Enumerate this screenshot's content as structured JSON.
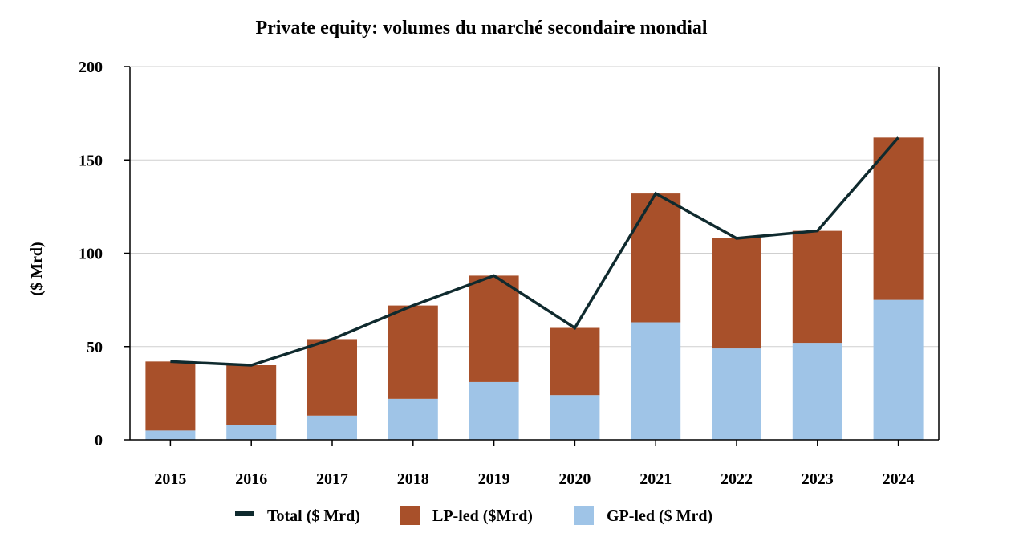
{
  "chart_data": {
    "type": "bar",
    "stacked": true,
    "title": "Private equity: volumes du marché secondaire mondial",
    "xlabel": "",
    "ylabel": "($ Mrd)",
    "ylim": [
      0,
      200
    ],
    "yticks": [
      0,
      50,
      100,
      150,
      200
    ],
    "grid": true,
    "legend_position": "bottom",
    "categories": [
      "2015",
      "2016",
      "2017",
      "2018",
      "2019",
      "2020",
      "2021",
      "2022",
      "2023",
      "2024"
    ],
    "series": [
      {
        "name": "GP-led ($ Mrd)",
        "kind": "bar",
        "color": "#9fc4e7",
        "values": [
          5,
          8,
          13,
          22,
          31,
          24,
          63,
          49,
          52,
          75
        ]
      },
      {
        "name": "LP-led ($Mrd)",
        "kind": "bar",
        "color": "#a8502a",
        "values": [
          37,
          32,
          41,
          50,
          57,
          36,
          69,
          59,
          60,
          87
        ]
      },
      {
        "name": "Total ($ Mrd)",
        "kind": "line",
        "color": "#0f2a2e",
        "values": [
          42,
          40,
          54,
          72,
          88,
          60,
          132,
          108,
          112,
          162
        ]
      }
    ],
    "legend": [
      {
        "label": "Total ($ Mrd)",
        "color": "#0f2a2e",
        "marker": "line"
      },
      {
        "label": "LP-led ($Mrd)",
        "color": "#a8502a",
        "marker": "box"
      },
      {
        "label": "GP-led ($ Mrd)",
        "color": "#9fc4e7",
        "marker": "box"
      }
    ]
  }
}
